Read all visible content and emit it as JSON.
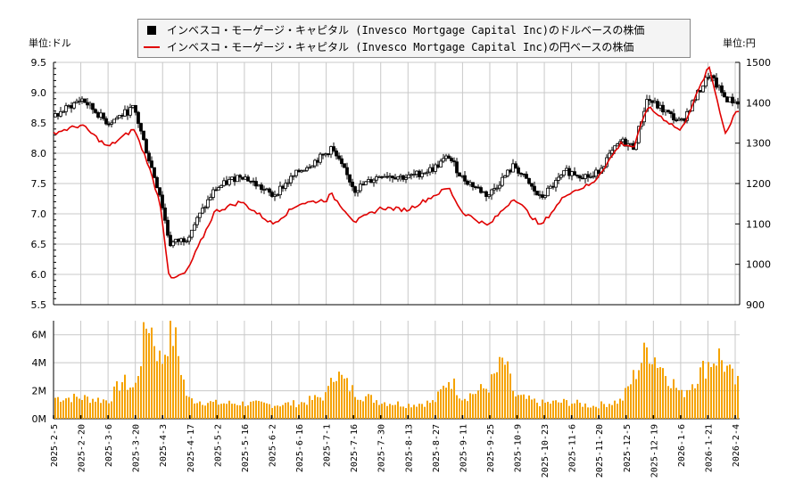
{
  "legend": {
    "usd_label": "インベスコ・モーゲージ・キャピタル (Invesco Mortgage Capital Inc)のドルベースの株価",
    "jpy_label": "インベスコ・モーゲージ・キャピタル (Invesco Mortgage Capital Inc)の円ベースの株価"
  },
  "axes": {
    "left_unit": "単位:ドル",
    "right_unit": "単位:円"
  },
  "colors": {
    "candle": "#000000",
    "jpy_line": "#e00000",
    "volume": "#f5a300",
    "grid": "#c8c8c8"
  },
  "chart_data": [
    {
      "type": "candlestick+line",
      "title": "インベスコ・モーゲージ・キャピタル (Invesco Mortgage Capital Inc) 株価",
      "ylabel": "単位:ドル",
      "ylabel_right": "単位:円",
      "ylim": [
        5.5,
        9.5
      ],
      "ylim_right": [
        900,
        1500
      ],
      "yticks": [
        5.5,
        6.0,
        6.5,
        7.0,
        7.5,
        8.0,
        8.5,
        9.0,
        9.5
      ],
      "yticks_right": [
        900,
        1000,
        1100,
        1200,
        1300,
        1400,
        1500
      ],
      "x_ticks": [
        "2025-2-5",
        "2025-2-20",
        "2025-3-6",
        "2025-3-20",
        "2025-4-3",
        "2025-4-17",
        "2025-5-2",
        "2025-5-16",
        "2025-6-2",
        "2025-6-16",
        "2025-7-1",
        "2025-7-16",
        "2025-7-30",
        "2025-8-13",
        "2025-8-27",
        "2025-9-11",
        "2025-9-25",
        "2025-10-9",
        "2025-10-23",
        "2025-11-6",
        "2025-11-20",
        "2025-12-5",
        "2025-12-19",
        "2026-1-6",
        "2026-1-21",
        "2026-2-4"
      ],
      "grid": true,
      "legend_position": "top",
      "series": [
        {
          "name": "ドルベースの株価 (USD close, approx.)",
          "x": [
            "2025-2-5",
            "2025-2-20",
            "2025-3-6",
            "2025-3-20",
            "2025-3-27",
            "2025-4-3",
            "2025-4-8",
            "2025-4-17",
            "2025-5-2",
            "2025-5-16",
            "2025-6-2",
            "2025-6-16",
            "2025-7-1",
            "2025-7-3",
            "2025-7-16",
            "2025-7-30",
            "2025-8-13",
            "2025-8-27",
            "2025-9-4",
            "2025-9-11",
            "2025-9-25",
            "2025-10-9",
            "2025-10-23",
            "2025-11-6",
            "2025-11-20",
            "2025-12-5",
            "2025-12-12",
            "2025-12-19",
            "2026-1-6",
            "2026-1-21",
            "2026-1-30",
            "2026-2-4"
          ],
          "values": [
            8.6,
            8.9,
            8.5,
            8.75,
            8.0,
            7.3,
            6.5,
            6.6,
            7.4,
            7.65,
            7.3,
            7.7,
            8.0,
            8.1,
            7.4,
            7.65,
            7.6,
            7.75,
            7.95,
            7.6,
            7.3,
            7.8,
            7.25,
            7.7,
            7.6,
            8.2,
            8.1,
            8.9,
            8.5,
            9.3,
            8.9,
            8.85
          ]
        },
        {
          "name": "円ベースの株価 (JPY, approx.)",
          "x": [
            "2025-2-5",
            "2025-2-20",
            "2025-3-6",
            "2025-3-20",
            "2025-3-27",
            "2025-4-3",
            "2025-4-8",
            "2025-4-17",
            "2025-5-2",
            "2025-5-16",
            "2025-6-2",
            "2025-6-16",
            "2025-7-1",
            "2025-7-3",
            "2025-7-16",
            "2025-7-30",
            "2025-8-13",
            "2025-8-27",
            "2025-9-4",
            "2025-9-11",
            "2025-9-25",
            "2025-10-9",
            "2025-10-23",
            "2025-11-6",
            "2025-11-20",
            "2025-12-5",
            "2025-12-12",
            "2025-12-19",
            "2026-1-6",
            "2026-1-21",
            "2026-1-30",
            "2026-2-4"
          ],
          "values": [
            1325,
            1345,
            1290,
            1335,
            1255,
            1150,
            960,
            980,
            1130,
            1155,
            1100,
            1150,
            1160,
            1175,
            1105,
            1140,
            1135,
            1170,
            1190,
            1130,
            1095,
            1165,
            1095,
            1175,
            1200,
            1300,
            1290,
            1390,
            1330,
            1490,
            1320,
            1380
          ]
        }
      ]
    },
    {
      "type": "bar",
      "title": "出来高",
      "ylabel": "",
      "ylim": [
        0,
        7000000
      ],
      "yticks_labels": [
        "0M",
        "2M",
        "4M",
        "6M"
      ],
      "x_ticks": [
        "2025-2-5",
        "2025-2-20",
        "2025-3-6",
        "2025-3-20",
        "2025-4-3",
        "2025-4-17",
        "2025-5-2",
        "2025-5-16",
        "2025-6-2",
        "2025-6-16",
        "2025-7-1",
        "2025-7-16",
        "2025-7-30",
        "2025-8-13",
        "2025-8-27",
        "2025-9-11",
        "2025-9-25",
        "2025-10-9",
        "2025-10-23",
        "2025-11-6",
        "2025-11-20",
        "2025-12-5",
        "2025-12-19",
        "2026-1-6",
        "2026-1-21",
        "2026-2-4"
      ],
      "grid": true,
      "categories": [
        "2025-2-5",
        "2025-2-20",
        "2025-3-6",
        "2025-3-13",
        "2025-3-20",
        "2025-3-27",
        "2025-4-3",
        "2025-4-7",
        "2025-4-10",
        "2025-4-17",
        "2025-5-2",
        "2025-5-16",
        "2025-6-2",
        "2025-6-16",
        "2025-7-1",
        "2025-7-3",
        "2025-7-16",
        "2025-7-30",
        "2025-8-13",
        "2025-8-27",
        "2025-9-4",
        "2025-9-11",
        "2025-9-25",
        "2025-10-3",
        "2025-10-9",
        "2025-10-23",
        "2025-11-6",
        "2025-11-20",
        "2025-12-5",
        "2025-12-19",
        "2026-1-6",
        "2026-1-21",
        "2026-1-26",
        "2026-2-4"
      ],
      "values": [
        1500000,
        1500000,
        1300000,
        2700000,
        2100000,
        7300000,
        3900000,
        5900000,
        6000000,
        1400000,
        1100000,
        1100000,
        1000000,
        1100000,
        1700000,
        3600000,
        1800000,
        1200000,
        1000000,
        1200000,
        2900000,
        1500000,
        2300000,
        4200000,
        1600000,
        1100000,
        1200000,
        900000,
        1300000,
        5100000,
        1700000,
        4100000,
        4500000,
        2500000
      ]
    }
  ]
}
